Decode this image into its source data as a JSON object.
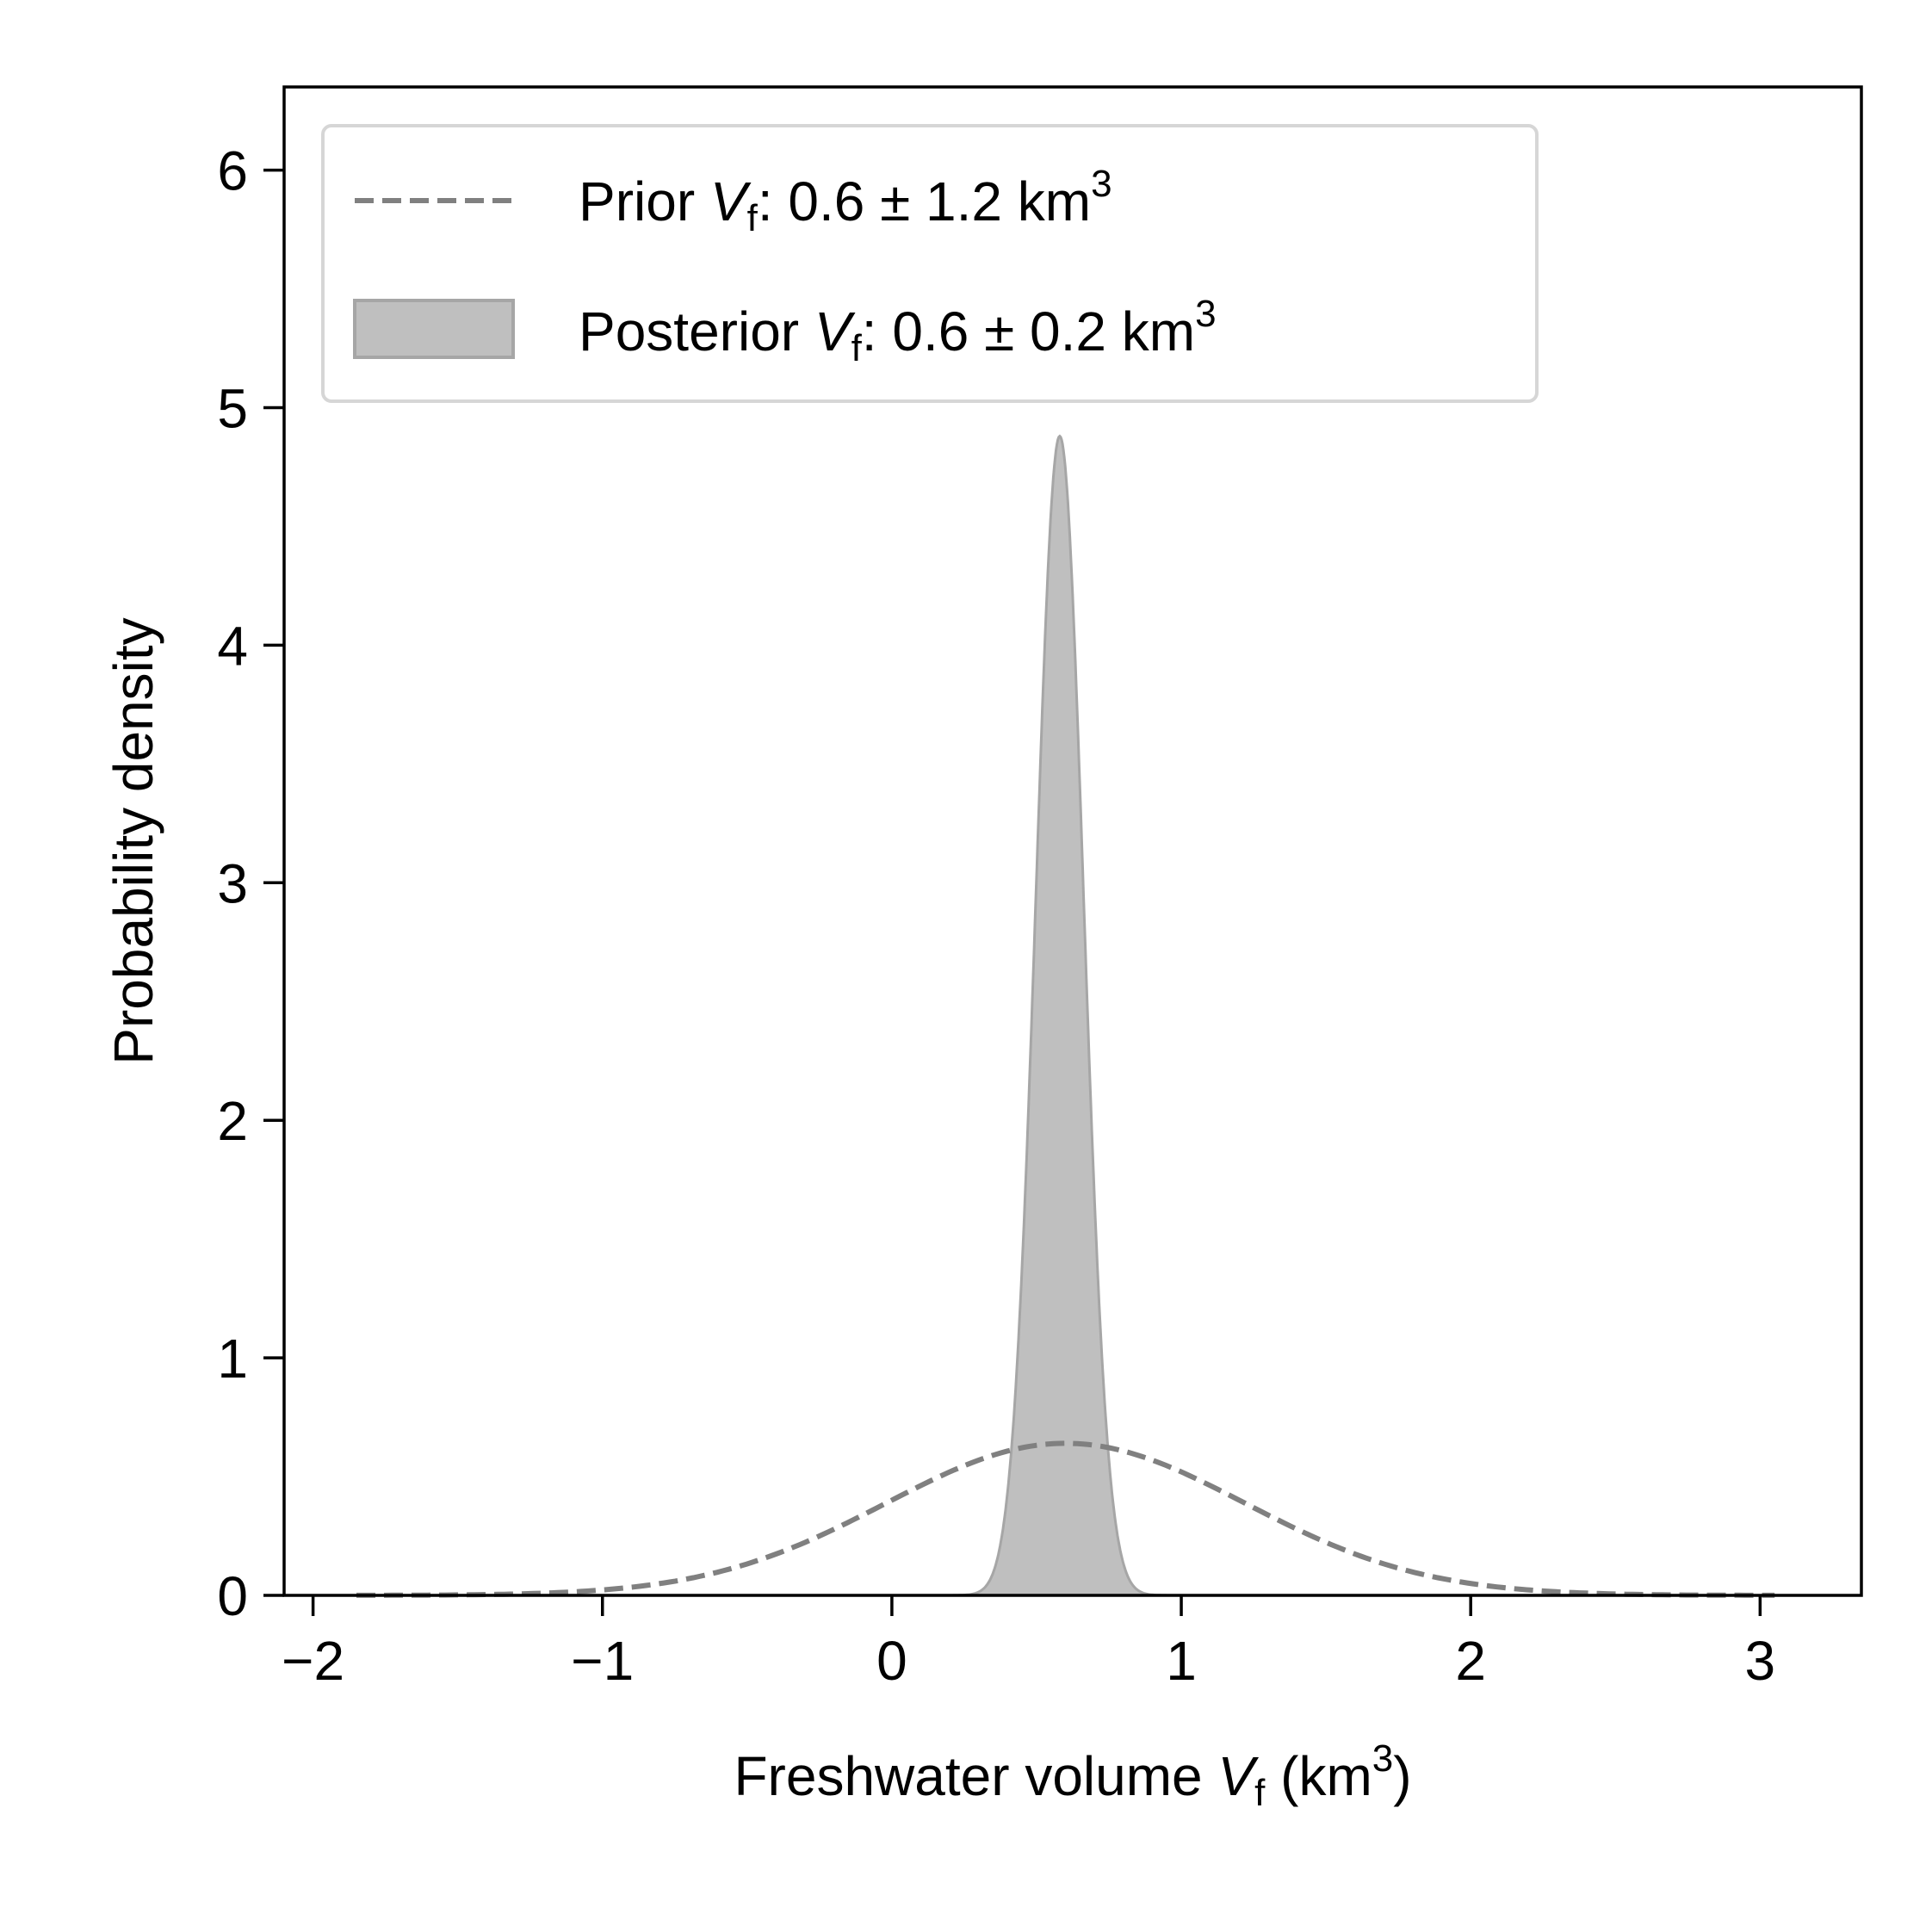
{
  "chart_data": {
    "type": "area",
    "title": "",
    "xlabel": "Freshwater volume",
    "xlabel_var": "V",
    "xlabel_sub": "f",
    "xlabel_unit_open": " (km",
    "xlabel_unit_sup": "3",
    "xlabel_unit_close": ")",
    "ylabel": "Probability density",
    "xlim": [
      -2.1,
      3.35
    ],
    "ylim": [
      0,
      6.35
    ],
    "xticks": [
      -2,
      -1,
      0,
      1,
      2,
      3
    ],
    "xtick_labels": [
      "−2",
      "−1",
      "0",
      "1",
      "2",
      "3"
    ],
    "yticks": [
      0,
      1,
      2,
      3,
      4,
      5,
      6
    ],
    "ytick_labels": [
      "0",
      "1",
      "2",
      "3",
      "4",
      "5",
      "6"
    ],
    "legend_position": "top-left",
    "series": [
      {
        "name": "Prior",
        "style": "dashed-line",
        "color": "#808080",
        "distribution": "normal",
        "mean": 0.6,
        "sd": 0.62,
        "x_range": [
          -1.85,
          3.05
        ],
        "peak_density": 0.64
      },
      {
        "name": "Posterior",
        "style": "filled-area",
        "color": "#bfbfbf",
        "edge_color": "#a6a6a6",
        "distribution": "normal",
        "mean": 0.58,
        "sd": 0.082,
        "x_range": [
          0.2,
          0.96
        ],
        "peak_density": 4.88
      }
    ],
    "legend": [
      {
        "prefix": "Prior ",
        "var": "V",
        "sub": "f",
        "suffix": ": 0.6 ± 1.2 km",
        "sup": "3"
      },
      {
        "prefix": "Posterior ",
        "var": "V",
        "sub": "f",
        "suffix": ": 0.6 ± 0.2 km",
        "sup": "3"
      }
    ]
  }
}
